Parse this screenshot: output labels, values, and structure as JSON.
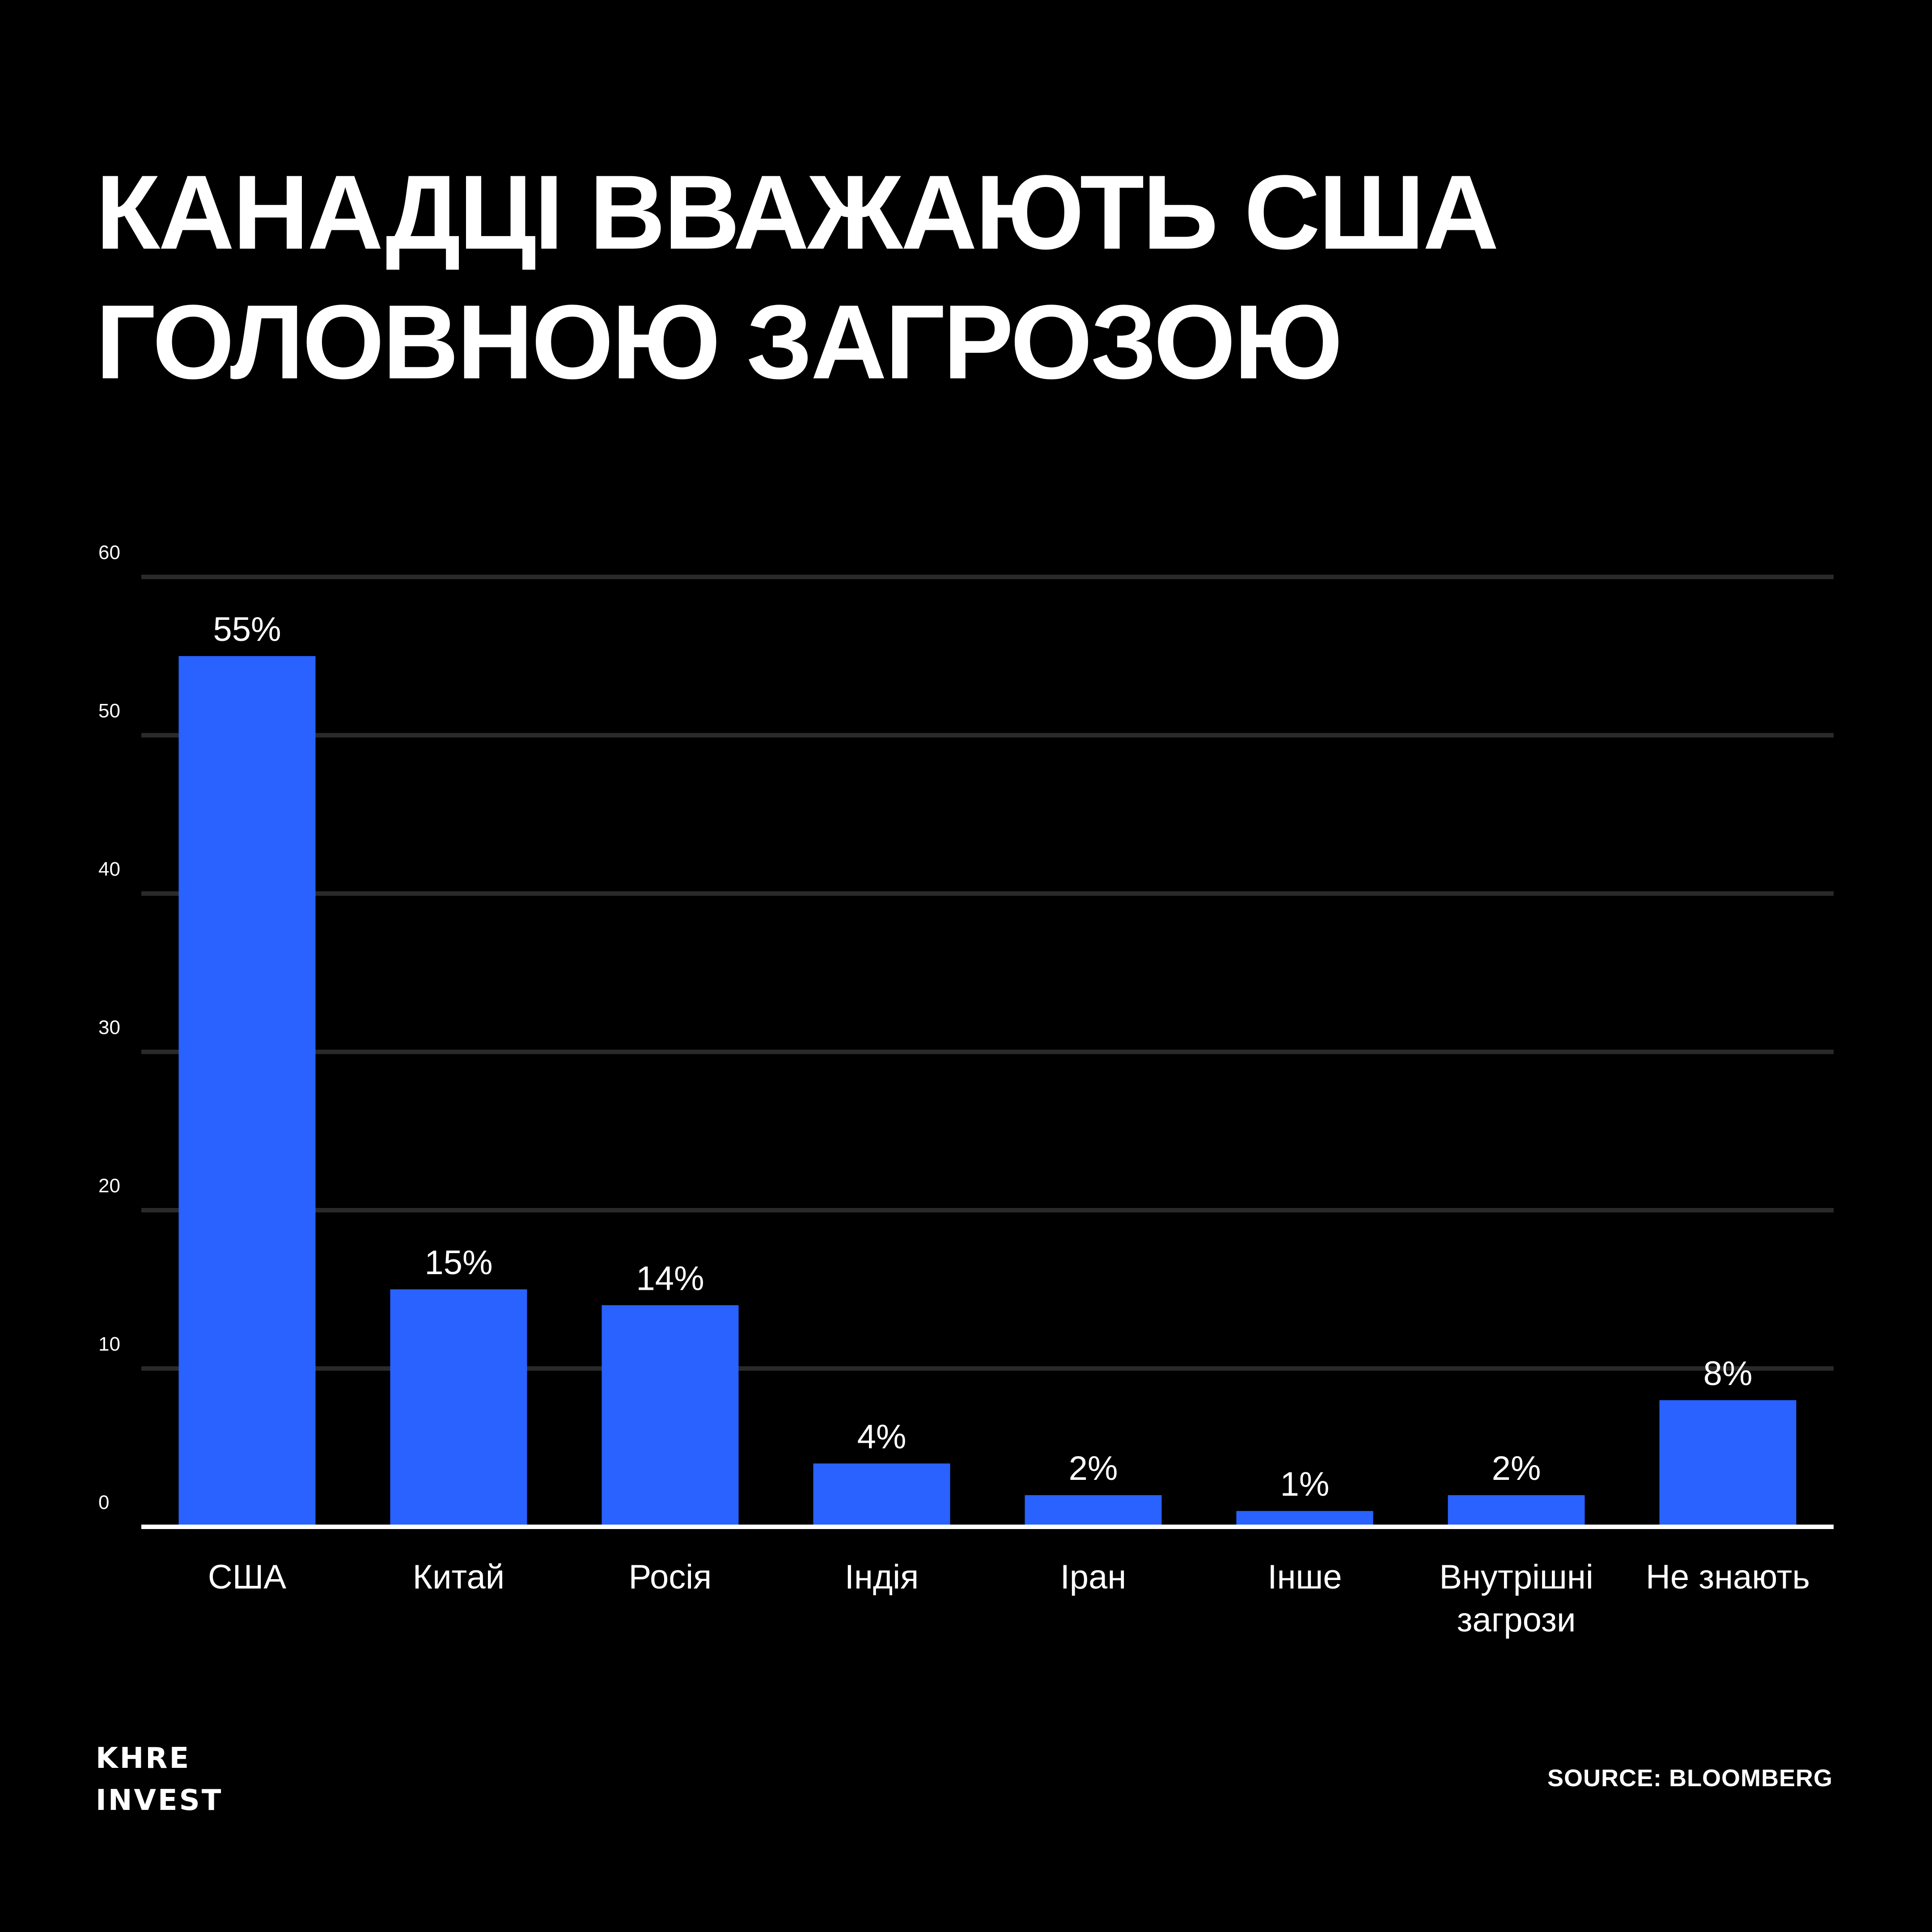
{
  "title_lines": [
    "КАНАДЦІ ВВАЖАЮТЬ США",
    "ГОЛОВНОЮ ЗАГРОЗОЮ"
  ],
  "brand_lines": [
    "KHRE",
    "INVEST"
  ],
  "source": "SOURCE: BLOOMBERG",
  "colors": {
    "background": "#000000",
    "bar": "#2962FF",
    "grid": "#2a2a2a",
    "baseline": "#ffffff",
    "text": "#ffffff"
  },
  "chart_data": {
    "type": "bar",
    "categories": [
      [
        "США"
      ],
      [
        "Китай"
      ],
      [
        "Росія"
      ],
      [
        "Індія"
      ],
      [
        "Іран"
      ],
      [
        "Інше"
      ],
      [
        "Внутрішні",
        "загрози"
      ],
      [
        "Не знають"
      ]
    ],
    "values": [
      55,
      15,
      14,
      4,
      2,
      1,
      2,
      8
    ],
    "data_labels": [
      "55%",
      "15%",
      "14%",
      "4%",
      "2%",
      "1%",
      "2%",
      "8%"
    ],
    "yticks": [
      0,
      10,
      20,
      30,
      40,
      50,
      60
    ],
    "ylim": [
      0,
      60
    ],
    "grid": true
  }
}
